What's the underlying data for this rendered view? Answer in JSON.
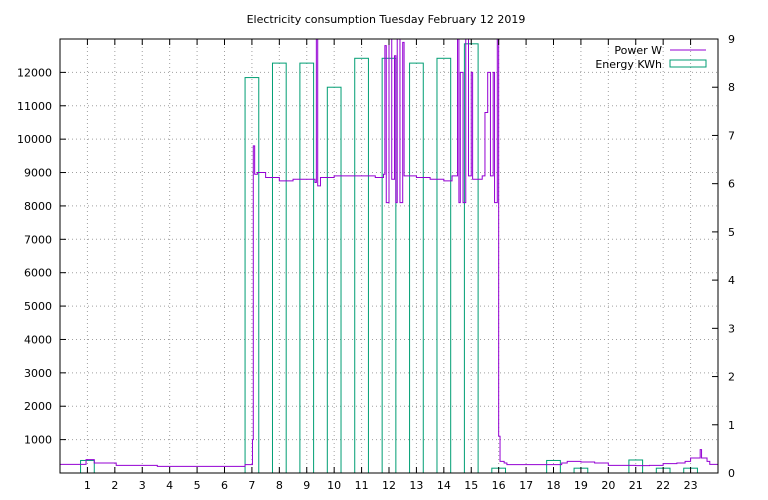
{
  "chart_data": {
    "type": "bar",
    "title": "Electricity consumption Tuesday February 12 2019",
    "xlabel": "",
    "ylabel": "",
    "y2label": "",
    "xlim": [
      0,
      24
    ],
    "ylim": [
      0,
      13000
    ],
    "y2lim": [
      0,
      9
    ],
    "x_ticks": [
      1,
      2,
      3,
      4,
      5,
      6,
      7,
      8,
      9,
      10,
      11,
      12,
      13,
      14,
      15,
      16,
      17,
      18,
      19,
      20,
      21,
      22,
      23
    ],
    "y_ticks": [
      1000,
      2000,
      3000,
      4000,
      5000,
      6000,
      7000,
      8000,
      9000,
      10000,
      11000,
      12000
    ],
    "y2_ticks": [
      0,
      1,
      2,
      3,
      4,
      5,
      6,
      7,
      8,
      9
    ],
    "grid": true,
    "legend_position": "top-right",
    "colors": {
      "power": "#9400d3",
      "energy": "#009e73"
    },
    "series": [
      {
        "name": "Power W",
        "kind": "line",
        "axis": "y",
        "points": [
          [
            0,
            260
          ],
          [
            0.9,
            260
          ],
          [
            0.95,
            400
          ],
          [
            1.2,
            400
          ],
          [
            1.25,
            300
          ],
          [
            2,
            300
          ],
          [
            2.05,
            230
          ],
          [
            3.5,
            230
          ],
          [
            3.55,
            200
          ],
          [
            6.7,
            200
          ],
          [
            6.75,
            250
          ],
          [
            7,
            250
          ],
          [
            7.02,
            1000
          ],
          [
            7.05,
            9800
          ],
          [
            7.1,
            8950
          ],
          [
            7.2,
            9000
          ],
          [
            7.5,
            8850
          ],
          [
            8,
            8750
          ],
          [
            8.5,
            8800
          ],
          [
            9,
            8800
          ],
          [
            9.3,
            8700
          ],
          [
            9.35,
            13000
          ],
          [
            9.4,
            8600
          ],
          [
            9.5,
            8850
          ],
          [
            10,
            8900
          ],
          [
            11,
            8900
          ],
          [
            11.5,
            8850
          ],
          [
            11.8,
            8950
          ],
          [
            11.85,
            12800
          ],
          [
            11.9,
            8100
          ],
          [
            12,
            13000
          ],
          [
            12.1,
            8800
          ],
          [
            12.2,
            12500
          ],
          [
            12.25,
            8100
          ],
          [
            12.3,
            13000
          ],
          [
            12.4,
            8100
          ],
          [
            12.5,
            12900
          ],
          [
            12.55,
            8900
          ],
          [
            13,
            8850
          ],
          [
            13.5,
            8800
          ],
          [
            14,
            8750
          ],
          [
            14.3,
            8900
          ],
          [
            14.5,
            13000
          ],
          [
            14.55,
            8100
          ],
          [
            14.6,
            12000
          ],
          [
            14.7,
            8100
          ],
          [
            14.8,
            13000
          ],
          [
            14.9,
            8900
          ],
          [
            15,
            12000
          ],
          [
            15.05,
            8800
          ],
          [
            15.4,
            8900
          ],
          [
            15.5,
            10800
          ],
          [
            15.6,
            12000
          ],
          [
            15.7,
            8900
          ],
          [
            15.8,
            12000
          ],
          [
            15.85,
            8100
          ],
          [
            15.95,
            13000
          ],
          [
            16,
            1100
          ],
          [
            16.05,
            350
          ],
          [
            16.2,
            300
          ],
          [
            16.3,
            250
          ],
          [
            17,
            250
          ],
          [
            18,
            250
          ],
          [
            18.3,
            300
          ],
          [
            18.5,
            350
          ],
          [
            19,
            330
          ],
          [
            19.5,
            300
          ],
          [
            20,
            230
          ],
          [
            21,
            220
          ],
          [
            21.5,
            230
          ],
          [
            22,
            280
          ],
          [
            22.5,
            300
          ],
          [
            22.8,
            350
          ],
          [
            23,
            450
          ],
          [
            23.3,
            450
          ],
          [
            23.35,
            700
          ],
          [
            23.4,
            450
          ],
          [
            23.6,
            350
          ],
          [
            23.7,
            260
          ],
          [
            24,
            260
          ]
        ]
      },
      {
        "name": "Energy KWh",
        "kind": "bar",
        "axis": "y2",
        "bar_width": 0.5,
        "x": [
          1,
          7,
          8,
          9,
          10,
          11,
          12,
          13,
          14,
          15,
          16,
          18,
          19,
          21,
          22,
          23
        ],
        "values": [
          0.26,
          8.2,
          8.5,
          8.5,
          8.0,
          8.6,
          8.6,
          8.5,
          8.6,
          8.9,
          0.1,
          0.26,
          0.1,
          0.27,
          0.1,
          0.1
        ]
      }
    ]
  }
}
